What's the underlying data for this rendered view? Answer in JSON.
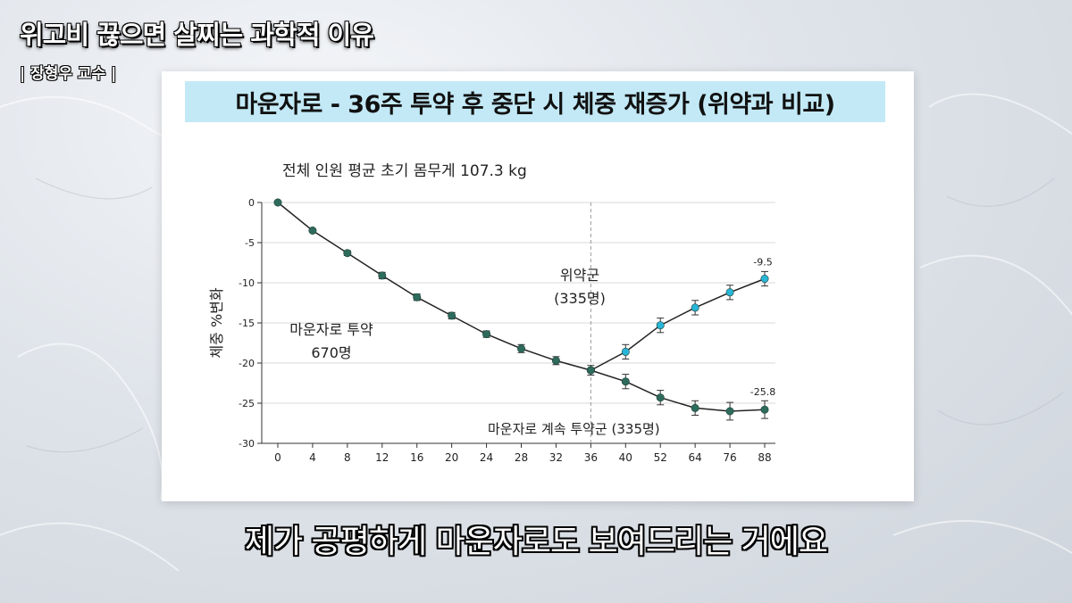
{
  "video": {
    "title": "위고비 끊으면 살찌는 과학적 이유",
    "subtitle": "| 장형우 교수 |",
    "caption": "제가 공평하게 마운자로도 보여드리는 거에요"
  },
  "slide": {
    "banner_title": "마운자로 - 36주 투약 후 중단 시 체중 재증가 (위약과 비교)",
    "banner_color": "#c3e9f6"
  },
  "chart_data": {
    "type": "line",
    "subtitle": "전체 인원 평균 초기 몸무게 107.3 kg",
    "xlabel": "",
    "ylabel": "체중 %변화",
    "x_ticks": [
      0,
      4,
      8,
      12,
      16,
      20,
      24,
      28,
      32,
      36,
      40,
      52,
      64,
      76,
      88
    ],
    "y_ticks": [
      0,
      -5,
      -10,
      -15,
      -20,
      -25,
      -30
    ],
    "ylim": [
      -30,
      0
    ],
    "grid": true,
    "vline_x": 36,
    "series": [
      {
        "key": "lead-in",
        "color": "#2e6b5c",
        "points": [
          [
            0,
            0
          ],
          [
            4,
            -3.5
          ],
          [
            8,
            -6.3
          ],
          [
            12,
            -9.1
          ],
          [
            16,
            -11.8
          ],
          [
            20,
            -14.1
          ],
          [
            24,
            -16.4
          ],
          [
            28,
            -18.2
          ],
          [
            32,
            -19.7
          ],
          [
            36,
            -20.9
          ]
        ],
        "err": [
          0,
          0,
          0.3,
          0.4,
          0.4,
          0.4,
          0.4,
          0.5,
          0.5,
          0.6
        ]
      },
      {
        "key": "placebo",
        "color": "#29b5d6",
        "points": [
          [
            36,
            -20.9
          ],
          [
            40,
            -18.6
          ],
          [
            52,
            -15.3
          ],
          [
            64,
            -13.1
          ],
          [
            76,
            -11.2
          ],
          [
            88,
            -9.5
          ]
        ],
        "err": [
          0,
          0.9,
          0.9,
          0.9,
          0.9,
          0.9
        ]
      },
      {
        "key": "continued",
        "color": "#2e6b5c",
        "points": [
          [
            36,
            -20.9
          ],
          [
            40,
            -22.3
          ],
          [
            52,
            -24.3
          ],
          [
            64,
            -25.6
          ],
          [
            76,
            -26.0
          ],
          [
            88,
            -25.8
          ]
        ],
        "err": [
          0,
          0.9,
          0.9,
          0.9,
          1.1,
          1.1
        ]
      }
    ],
    "annotations": {
      "lead_in_label_1": "마운자로 투약",
      "lead_in_label_2": "670명",
      "placebo_label_1": "위약군",
      "placebo_label_2": "(335명)",
      "continued_label": "마운자로 계속 투약군 (335명)",
      "placebo_end_value": "-9.5",
      "continued_end_value": "-25.8"
    }
  }
}
